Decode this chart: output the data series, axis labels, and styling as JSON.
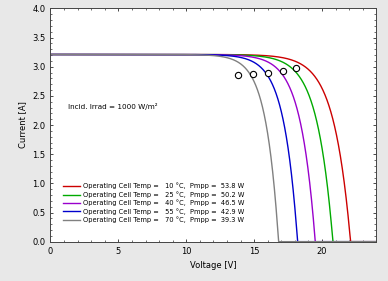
{
  "xlabel": "Voltage [V]",
  "ylabel": "Current [A]",
  "xlim": [
    0,
    24
  ],
  "ylim": [
    0,
    4.0
  ],
  "xticks": [
    0,
    5,
    10,
    15,
    20
  ],
  "yticks": [
    0.0,
    0.5,
    1.0,
    1.5,
    2.0,
    2.5,
    3.0,
    3.5,
    4.0
  ],
  "incid_label": "Incid. Irrad = 1000 W/m²",
  "curves": [
    {
      "temp": 10,
      "Pmpp": 53.8,
      "Isc": 3.21,
      "Voc": 22.1,
      "Impp": 2.97,
      "Vmpp": 18.1,
      "color": "#cc0000"
    },
    {
      "temp": 25,
      "Pmpp": 50.2,
      "Isc": 3.21,
      "Voc": 20.8,
      "Impp": 2.93,
      "Vmpp": 17.1,
      "color": "#00aa00"
    },
    {
      "temp": 40,
      "Pmpp": 46.5,
      "Isc": 3.21,
      "Voc": 19.5,
      "Impp": 2.9,
      "Vmpp": 16.0,
      "color": "#9900cc"
    },
    {
      "temp": 55,
      "Pmpp": 42.9,
      "Isc": 3.21,
      "Voc": 18.2,
      "Impp": 2.88,
      "Vmpp": 14.9,
      "color": "#0000cc"
    },
    {
      "temp": 70,
      "Pmpp": 39.3,
      "Isc": 3.21,
      "Voc": 16.8,
      "Impp": 2.85,
      "Vmpp": 13.8,
      "color": "#808080"
    }
  ],
  "legend_entries": [
    "Operating Cell Temp =   10 °C,  Pmpp =  53.8 W",
    "Operating Cell Temp =   25 °C,  Pmpp =  50.2 W",
    "Operating Cell Temp =   40 °C,  Pmpp =  46.5 W",
    "Operating Cell Temp =   55 °C,  Pmpp =  42.9 W",
    "Operating Cell Temp =   70 °C,  Pmpp =  39.3 W"
  ],
  "legend_colors": [
    "#cc0000",
    "#00aa00",
    "#9900cc",
    "#0000cc",
    "#808080"
  ],
  "bg_color": "#e8e8e8",
  "plot_bg_color": "#ffffff",
  "font_size": 6.0,
  "tick_font_size": 6.0
}
